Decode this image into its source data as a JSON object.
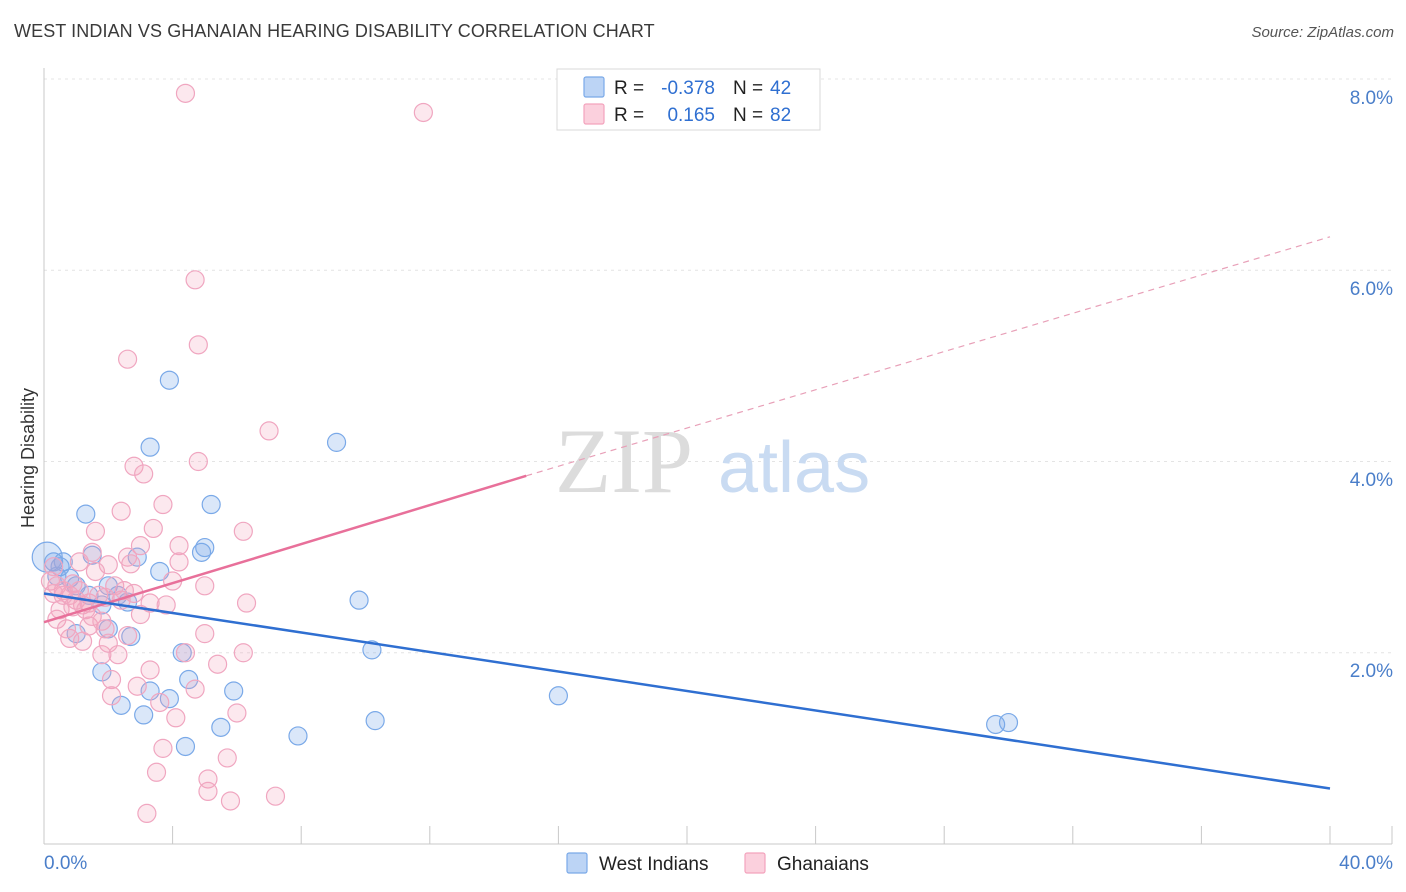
{
  "title": "WEST INDIAN VS GHANAIAN HEARING DISABILITY CORRELATION CHART",
  "source": "Source: ZipAtlas.com",
  "watermark": {
    "zip": "ZIP",
    "atlas": "atlas"
  },
  "legend": {
    "r_label": "R =",
    "n_label": "N =",
    "rows": [
      {
        "r": "-0.378",
        "n": "42"
      },
      {
        "r": "0.165",
        "n": "82"
      }
    ]
  },
  "chart_data": {
    "type": "scatter",
    "title": "WEST INDIAN VS GHANAIAN HEARING DISABILITY CORRELATION CHART",
    "xlabel": "",
    "ylabel": "Hearing Disability",
    "xlim": [
      0,
      40
    ],
    "ylim": [
      0,
      8
    ],
    "x_tick_labels": [
      "0.0%",
      "40.0%"
    ],
    "y_ticks": [
      2,
      4,
      6,
      8
    ],
    "y_tick_labels": [
      "2.0%",
      "4.0%",
      "6.0%",
      "8.0%"
    ],
    "colors": {
      "west_indians": "#7aa9e8",
      "ghanaians": "#f3a3bd",
      "west_line": "#2f6fd1",
      "ghana_line": "#e8709a"
    },
    "series": [
      {
        "name": "West Indians",
        "r": -0.378,
        "n": 42,
        "trend": {
          "x0": 0,
          "y0": 2.62,
          "x1": 40,
          "y1": 0.58
        },
        "points": [
          [
            0.1,
            3.0
          ],
          [
            0.3,
            2.95
          ],
          [
            0.5,
            2.9
          ],
          [
            0.4,
            2.8
          ],
          [
            0.8,
            2.78
          ],
          [
            0.6,
            2.95
          ],
          [
            1.0,
            2.7
          ],
          [
            1.4,
            2.6
          ],
          [
            1.8,
            2.5
          ],
          [
            2.6,
            2.53
          ],
          [
            1.3,
            3.45
          ],
          [
            1.5,
            3.02
          ],
          [
            2.9,
            3.0
          ],
          [
            3.6,
            2.85
          ],
          [
            3.3,
            4.15
          ],
          [
            3.9,
            4.85
          ],
          [
            5.2,
            3.55
          ],
          [
            5.0,
            3.1
          ],
          [
            4.9,
            3.05
          ],
          [
            9.1,
            4.2
          ],
          [
            9.8,
            2.55
          ],
          [
            2.0,
            2.25
          ],
          [
            2.7,
            2.17
          ],
          [
            1.0,
            2.2
          ],
          [
            1.8,
            1.8
          ],
          [
            4.3,
            2.0
          ],
          [
            3.3,
            1.6
          ],
          [
            4.5,
            1.72
          ],
          [
            3.9,
            1.52
          ],
          [
            5.9,
            1.6
          ],
          [
            2.4,
            1.45
          ],
          [
            3.1,
            1.35
          ],
          [
            5.5,
            1.22
          ],
          [
            4.4,
            1.02
          ],
          [
            10.2,
            2.03
          ],
          [
            10.3,
            1.29
          ],
          [
            7.9,
            1.13
          ],
          [
            16.0,
            1.55
          ],
          [
            29.6,
            1.25
          ],
          [
            30.0,
            1.27
          ],
          [
            2.0,
            2.7
          ],
          [
            2.3,
            2.6
          ]
        ]
      },
      {
        "name": "Ghanaians",
        "r": 0.165,
        "n": 82,
        "trend_solid": {
          "x0": 0,
          "y0": 2.32,
          "x1": 15.0,
          "y1": 3.85
        },
        "trend_dashed": {
          "x0": 15.0,
          "y0": 3.85,
          "x1": 40,
          "y1": 6.35
        },
        "points": [
          [
            4.4,
            7.85
          ],
          [
            11.8,
            7.65
          ],
          [
            4.7,
            5.9
          ],
          [
            4.8,
            5.22
          ],
          [
            2.6,
            5.07
          ],
          [
            7.0,
            4.32
          ],
          [
            2.8,
            3.95
          ],
          [
            3.1,
            3.87
          ],
          [
            4.8,
            4.0
          ],
          [
            3.7,
            3.55
          ],
          [
            2.4,
            3.48
          ],
          [
            3.4,
            3.3
          ],
          [
            6.2,
            3.27
          ],
          [
            1.6,
            3.27
          ],
          [
            3.0,
            3.12
          ],
          [
            4.2,
            3.12
          ],
          [
            1.5,
            3.05
          ],
          [
            2.6,
            3.0
          ],
          [
            2.0,
            2.92
          ],
          [
            2.7,
            2.93
          ],
          [
            4.2,
            2.95
          ],
          [
            1.1,
            2.95
          ],
          [
            0.3,
            2.9
          ],
          [
            1.6,
            2.85
          ],
          [
            0.2,
            2.75
          ],
          [
            0.4,
            2.7
          ],
          [
            0.6,
            2.65
          ],
          [
            0.8,
            2.6
          ],
          [
            1.0,
            2.55
          ],
          [
            1.2,
            2.5
          ],
          [
            1.4,
            2.52
          ],
          [
            1.7,
            2.6
          ],
          [
            2.2,
            2.7
          ],
          [
            2.5,
            2.65
          ],
          [
            2.8,
            2.62
          ],
          [
            1.9,
            2.58
          ],
          [
            0.5,
            2.45
          ],
          [
            0.9,
            2.48
          ],
          [
            1.3,
            2.45
          ],
          [
            3.3,
            2.52
          ],
          [
            3.8,
            2.5
          ],
          [
            5.0,
            2.7
          ],
          [
            6.3,
            2.52
          ],
          [
            0.4,
            2.35
          ],
          [
            1.4,
            2.28
          ],
          [
            1.9,
            2.25
          ],
          [
            5.0,
            2.2
          ],
          [
            0.8,
            2.15
          ],
          [
            1.2,
            2.12
          ],
          [
            2.6,
            2.18
          ],
          [
            6.2,
            2.0
          ],
          [
            4.4,
            2.0
          ],
          [
            2.3,
            1.98
          ],
          [
            1.8,
            1.98
          ],
          [
            5.4,
            1.88
          ],
          [
            3.3,
            1.82
          ],
          [
            2.1,
            1.72
          ],
          [
            2.9,
            1.65
          ],
          [
            4.7,
            1.62
          ],
          [
            2.1,
            1.55
          ],
          [
            3.6,
            1.48
          ],
          [
            4.1,
            1.32
          ],
          [
            6.0,
            1.37
          ],
          [
            3.7,
            1.0
          ],
          [
            5.7,
            0.9
          ],
          [
            3.5,
            0.75
          ],
          [
            5.1,
            0.68
          ],
          [
            5.1,
            0.55
          ],
          [
            5.8,
            0.45
          ],
          [
            7.2,
            0.5
          ],
          [
            3.2,
            0.32
          ],
          [
            0.6,
            2.6
          ],
          [
            0.9,
            2.72
          ],
          [
            1.1,
            2.65
          ],
          [
            2.4,
            2.55
          ],
          [
            1.5,
            2.38
          ],
          [
            0.7,
            2.25
          ],
          [
            2.0,
            2.1
          ],
          [
            3.0,
            2.4
          ],
          [
            0.3,
            2.62
          ],
          [
            1.8,
            2.33
          ],
          [
            4.0,
            2.75
          ]
        ]
      }
    ]
  },
  "bottom_legend": [
    "West Indians",
    "Ghanaians"
  ]
}
